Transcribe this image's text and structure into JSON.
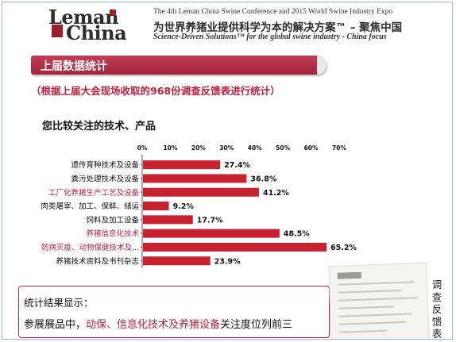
{
  "header": {
    "logo_line1": "Leman",
    "logo_line2": "China",
    "seal_text": "中国",
    "expo_title": "The 4th Leman China Swine Conference and 2015 World Swine Industry Expo",
    "slogan_cn": "为世界养猪业提供科学为本的解决方案™ – 聚焦中国",
    "slogan_en": "Science-Driven Solutions™ for the global swine industry - China focus"
  },
  "section_title": "上届数据统计",
  "subtitle": "（根据上届大会现场收取的968份调查反馈表进行统计）",
  "question": "您比较关注的技术、产品",
  "chart_data": {
    "type": "bar",
    "orientation": "horizontal",
    "categories": [
      "遗传育种技术及设备",
      "粪污处理技术及设备",
      "工厂化养猪生产工艺及设备",
      "肉类屠宰、加工、保鲜、储运",
      "饲料及加工设备",
      "养猪信息化技术",
      "防病灭疫、动物保健技术及...",
      "养猪技术资料及书刊杂志"
    ],
    "values": [
      27.4,
      36.8,
      41.2,
      9.2,
      17.7,
      48.5,
      65.2,
      23.9
    ],
    "value_labels": [
      "27.4%",
      "36.8%",
      "41.2%",
      "9.2%",
      "17.7%",
      "48.5%",
      "65.2%",
      "23.9%"
    ],
    "highlighted_categories": [
      2,
      5,
      6
    ],
    "xlim": [
      0,
      70
    ],
    "xticks": [
      "0%",
      "10%",
      "20%",
      "30%",
      "40%",
      "50%",
      "60%",
      "70%"
    ],
    "bar_color": "#c8212f",
    "highlight_label_color": "#c0213a",
    "label_color": "#111111"
  },
  "result": {
    "title": "统计结果显示：",
    "line_prefix": "参展展品中，",
    "line_highlight": "动保、信息化技术及养猪设备",
    "line_suffix": "关注度位列前三"
  },
  "side_label": "调查反馈表",
  "colors": {
    "accent": "#c0213a",
    "title_bar": "#b02e48"
  }
}
